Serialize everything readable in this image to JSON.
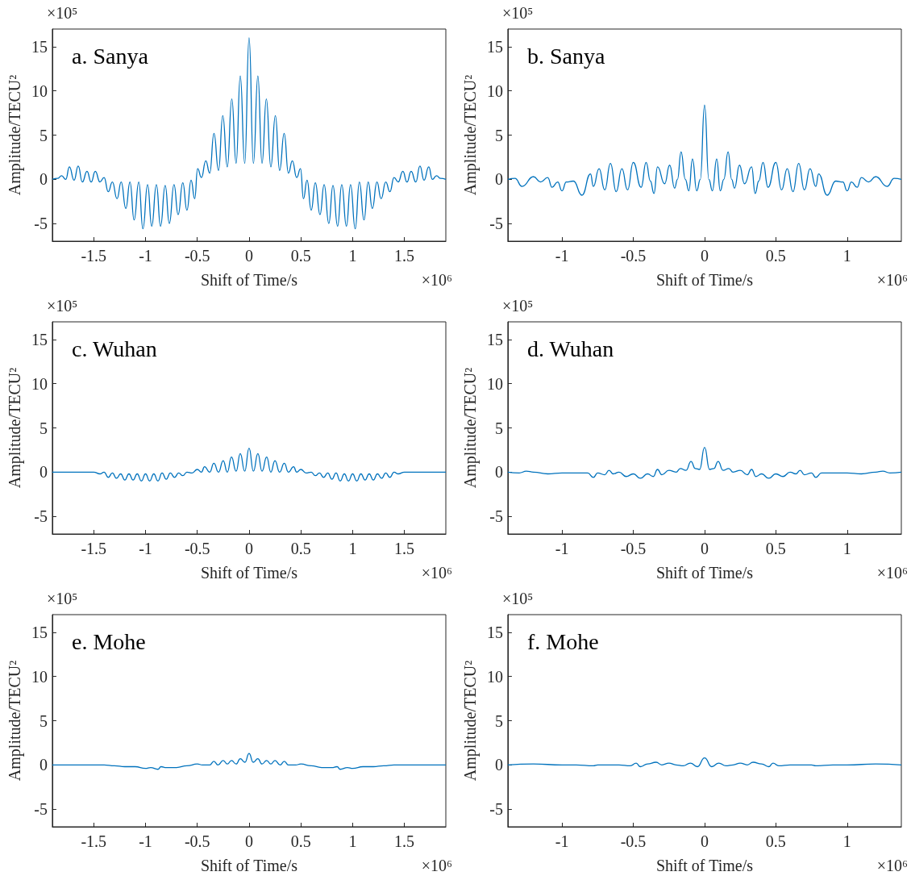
{
  "chart_data": [
    {
      "type": "line",
      "title": "a. Sanya",
      "xlabel": "Shift of Time/s",
      "ylabel": "Amplitude/TECU²",
      "annotations": [
        "×10⁵",
        "×10⁶"
      ],
      "xlim": [
        -1.9,
        1.9
      ],
      "xticks": [
        -1.5,
        -1,
        -0.5,
        0,
        0.5,
        1,
        1.5
      ],
      "ylim": [
        -7,
        17
      ],
      "yticks": [
        -5,
        0,
        5,
        10,
        15
      ],
      "marker": "none",
      "line_style": "solid",
      "x": [
        -1.9,
        -1.85,
        -1.81,
        -1.77,
        -1.735,
        -1.69,
        -1.65,
        -1.61,
        -1.565,
        -1.525,
        -1.485,
        -1.44,
        -1.4,
        -1.36,
        -1.32,
        -1.275,
        -1.235,
        -1.19,
        -1.15,
        -1.11,
        -1.065,
        -1.025,
        -0.98,
        -0.94,
        -0.895,
        -0.855,
        -0.81,
        -0.77,
        -0.725,
        -0.685,
        -0.64,
        -0.6,
        -0.56,
        -0.525,
        -0.497,
        -0.46,
        -0.418,
        -0.38,
        -0.339,
        -0.295,
        -0.254,
        -0.21,
        -0.167,
        -0.125,
        -0.085,
        -0.042,
        0,
        0.042,
        0.085,
        0.125,
        0.167,
        0.21,
        0.254,
        0.295,
        0.339,
        0.38,
        0.418,
        0.46,
        0.497,
        0.525,
        0.56,
        0.6,
        0.64,
        0.685,
        0.725,
        0.77,
        0.81,
        0.855,
        0.895,
        0.94,
        0.98,
        1.025,
        1.065,
        1.11,
        1.15,
        1.19,
        1.235,
        1.275,
        1.32,
        1.36,
        1.4,
        1.44,
        1.485,
        1.525,
        1.565,
        1.61,
        1.65,
        1.69,
        1.735,
        1.77,
        1.81,
        1.85,
        1.9
      ],
      "series": [
        {
          "color": "#0072bd",
          "values": [
            0,
            0.1,
            0.4,
            0,
            1.4,
            -0.1,
            1.5,
            -0.3,
            0.9,
            -0.3,
            0.9,
            -0.3,
            0.2,
            -1.4,
            -0.3,
            -2.2,
            -0.3,
            -3.3,
            -0.3,
            -4.6,
            -0.3,
            -5.6,
            -0.6,
            -5.3,
            -0.6,
            -5.3,
            -0.7,
            -5.0,
            -0.6,
            -4.0,
            -0.4,
            -3.5,
            -0.1,
            -2.2,
            1.2,
            0.2,
            2.1,
            0.7,
            5.2,
            1.0,
            7.2,
            1.4,
            9.1,
            1.8,
            11.7,
            1.8,
            16.0,
            1.8,
            11.7,
            1.8,
            9.1,
            1.4,
            7.2,
            1.0,
            5.2,
            0.7,
            2.1,
            0.2,
            1.2,
            -2.2,
            -0.1,
            -3.5,
            -0.4,
            -4.0,
            -0.6,
            -5.0,
            -0.7,
            -5.3,
            -0.6,
            -5.3,
            -0.6,
            -5.6,
            -0.3,
            -4.6,
            -0.3,
            -3.3,
            -0.3,
            -2.2,
            -0.3,
            -1.4,
            0.2,
            -0.3,
            0.9,
            -0.3,
            0.9,
            -0.3,
            1.5,
            -0.1,
            1.4,
            0,
            0.4,
            0.1,
            0
          ]
        }
      ]
    },
    {
      "type": "line",
      "title": "b. Sanya",
      "xlabel": "Shift of Time/s",
      "ylabel": "Amplitude/TECU²",
      "annotations": [
        "×10⁵",
        "×10⁶"
      ],
      "xlim": [
        -1.38,
        1.38
      ],
      "xticks": [
        -1,
        -0.5,
        0,
        0.5,
        1
      ],
      "ylim": [
        -7,
        17
      ],
      "yticks": [
        -5,
        0,
        5,
        10,
        15
      ],
      "marker": "none",
      "line_style": "solid",
      "x": [
        -1.38,
        -1.33,
        -1.28,
        -1.2,
        -1.15,
        -1.1,
        -1.07,
        -1.03,
        -1.0,
        -0.97,
        -0.92,
        -0.86,
        -0.8,
        -0.78,
        -0.74,
        -0.7,
        -0.66,
        -0.62,
        -0.58,
        -0.54,
        -0.5,
        -0.445,
        -0.41,
        -0.38,
        -0.355,
        -0.33,
        -0.28,
        -0.245,
        -0.21,
        -0.19,
        -0.165,
        -0.135,
        -0.11,
        -0.085,
        -0.055,
        -0.03,
        0,
        0.03,
        0.055,
        0.085,
        0.11,
        0.135,
        0.165,
        0.19,
        0.21,
        0.245,
        0.28,
        0.33,
        0.355,
        0.38,
        0.41,
        0.445,
        0.5,
        0.54,
        0.58,
        0.62,
        0.66,
        0.7,
        0.74,
        0.78,
        0.8,
        0.86,
        0.92,
        0.97,
        1.0,
        1.03,
        1.07,
        1.1,
        1.15,
        1.2,
        1.28,
        1.33,
        1.38
      ],
      "series": [
        {
          "color": "#0072bd",
          "values": [
            0,
            0.1,
            -0.8,
            0.3,
            -0.3,
            0.2,
            -0.9,
            -0.3,
            -1.3,
            -0.3,
            -0.2,
            -1.8,
            0.6,
            -0.8,
            1.2,
            -1.2,
            1.8,
            -1.4,
            1.2,
            -1.2,
            1.9,
            -0.9,
            1.9,
            -0.2,
            -1.6,
            1.4,
            -0.5,
            1.6,
            -1.0,
            0,
            3.1,
            0,
            -1.3,
            2.3,
            -1.3,
            0,
            8.4,
            0,
            -1.3,
            2.3,
            -1.3,
            0,
            3.1,
            0,
            -1.0,
            1.6,
            -0.5,
            1.4,
            -1.6,
            -0.2,
            1.9,
            -0.9,
            1.9,
            -1.2,
            1.2,
            -1.4,
            1.8,
            -1.2,
            1.2,
            -0.8,
            0.6,
            -1.8,
            -0.2,
            -0.3,
            -1.3,
            -0.3,
            -0.9,
            0.2,
            -0.3,
            0.3,
            -0.8,
            0.1,
            0
          ]
        }
      ]
    },
    {
      "type": "line",
      "title": "c. Wuhan",
      "xlabel": "Shift of Time/s",
      "ylabel": "Amplitude/TECU²",
      "annotations": [
        "×10⁵",
        "×10⁶"
      ],
      "xlim": [
        -1.9,
        1.9
      ],
      "xticks": [
        -1.5,
        -1,
        -0.5,
        0,
        0.5,
        1,
        1.5
      ],
      "ylim": [
        -7,
        17
      ],
      "yticks": [
        -5,
        0,
        5,
        10,
        15
      ],
      "marker": "none",
      "line_style": "solid",
      "x": [
        -1.9,
        -1.6,
        -1.5,
        -1.44,
        -1.4,
        -1.36,
        -1.32,
        -1.28,
        -1.24,
        -1.2,
        -1.16,
        -1.12,
        -1.08,
        -1.04,
        -1.0,
        -0.96,
        -0.92,
        -0.88,
        -0.84,
        -0.8,
        -0.76,
        -0.72,
        -0.68,
        -0.64,
        -0.6,
        -0.55,
        -0.5,
        -0.46,
        -0.43,
        -0.38,
        -0.34,
        -0.295,
        -0.25,
        -0.21,
        -0.17,
        -0.125,
        -0.085,
        -0.042,
        0,
        0.042,
        0.085,
        0.125,
        0.17,
        0.21,
        0.25,
        0.295,
        0.34,
        0.38,
        0.43,
        0.46,
        0.5,
        0.55,
        0.6,
        0.64,
        0.68,
        0.72,
        0.76,
        0.8,
        0.84,
        0.88,
        0.92,
        0.96,
        1.0,
        1.04,
        1.08,
        1.12,
        1.16,
        1.2,
        1.24,
        1.28,
        1.32,
        1.36,
        1.4,
        1.44,
        1.5,
        1.6,
        1.9
      ],
      "series": [
        {
          "color": "#0072bd",
          "values": [
            0,
            0,
            0,
            -0.2,
            0,
            -0.6,
            -0.1,
            -0.7,
            -0.2,
            -0.9,
            -0.2,
            -0.9,
            -0.2,
            -1.0,
            -0.2,
            -1.0,
            -0.2,
            -1.0,
            -0.1,
            -0.8,
            -0.1,
            -0.6,
            -0.1,
            -0.4,
            0,
            -0.1,
            0.3,
            0,
            0.6,
            0,
            1.0,
            0,
            1.3,
            0,
            1.7,
            0.1,
            2.1,
            0.1,
            2.7,
            0.1,
            2.1,
            0.1,
            1.7,
            0,
            1.3,
            0,
            1.0,
            0,
            0.6,
            0,
            0.3,
            -0.1,
            0,
            -0.4,
            -0.1,
            -0.6,
            -0.1,
            -0.8,
            -0.1,
            -1.0,
            -0.2,
            -1.0,
            -0.2,
            -1.0,
            -0.2,
            -0.9,
            -0.2,
            -0.9,
            -0.2,
            -0.7,
            -0.1,
            -0.6,
            0,
            -0.2,
            0,
            0,
            0
          ]
        }
      ]
    },
    {
      "type": "line",
      "title": "d. Wuhan",
      "xlabel": "Shift of Time/s",
      "ylabel": "Amplitude/TECU²",
      "annotations": [
        "×10⁵",
        "×10⁶"
      ],
      "xlim": [
        -1.38,
        1.38
      ],
      "xticks": [
        -1,
        -0.5,
        0,
        0.5,
        1
      ],
      "ylim": [
        -7,
        17
      ],
      "yticks": [
        -5,
        0,
        5,
        10,
        15
      ],
      "marker": "none",
      "line_style": "solid",
      "x": [
        -1.38,
        -1.3,
        -1.25,
        -1.2,
        -1.1,
        -1.0,
        -0.9,
        -0.82,
        -0.78,
        -0.75,
        -0.7,
        -0.67,
        -0.64,
        -0.6,
        -0.55,
        -0.5,
        -0.45,
        -0.4,
        -0.36,
        -0.33,
        -0.3,
        -0.25,
        -0.2,
        -0.17,
        -0.13,
        -0.095,
        -0.065,
        -0.035,
        0,
        0.035,
        0.065,
        0.095,
        0.13,
        0.17,
        0.2,
        0.25,
        0.3,
        0.33,
        0.36,
        0.4,
        0.45,
        0.5,
        0.55,
        0.6,
        0.64,
        0.67,
        0.7,
        0.75,
        0.78,
        0.82,
        0.9,
        1.0,
        1.1,
        1.2,
        1.25,
        1.3,
        1.38
      ],
      "series": [
        {
          "color": "#0072bd",
          "values": [
            0,
            -0.1,
            0.1,
            0,
            -0.2,
            -0.1,
            -0.1,
            -0.1,
            -0.6,
            -0.1,
            -0.3,
            0.2,
            -0.2,
            0,
            -0.5,
            -0.2,
            -0.7,
            -0.2,
            -0.5,
            0.3,
            -0.3,
            0.2,
            0,
            0.4,
            0.2,
            1.2,
            0.4,
            0.3,
            2.8,
            0.3,
            0.4,
            1.2,
            0.2,
            0.4,
            0,
            0.2,
            -0.3,
            0.3,
            -0.5,
            -0.2,
            -0.7,
            -0.2,
            -0.5,
            0,
            -0.2,
            0.2,
            -0.3,
            -0.1,
            -0.6,
            -0.1,
            -0.1,
            -0.1,
            -0.2,
            0,
            0.1,
            -0.1,
            0
          ]
        }
      ]
    },
    {
      "type": "line",
      "title": "e. Mohe",
      "xlabel": "Shift of Time/s",
      "ylabel": "Amplitude/TECU²",
      "annotations": [
        "×10⁵",
        "×10⁶"
      ],
      "xlim": [
        -1.9,
        1.9
      ],
      "xticks": [
        -1.5,
        -1,
        -0.5,
        0,
        0.5,
        1,
        1.5
      ],
      "ylim": [
        -7,
        17
      ],
      "yticks": [
        -5,
        0,
        5,
        10,
        15
      ],
      "marker": "none",
      "line_style": "solid",
      "x": [
        -1.9,
        -1.6,
        -1.4,
        -1.3,
        -1.2,
        -1.1,
        -1.0,
        -0.95,
        -0.88,
        -0.85,
        -0.8,
        -0.7,
        -0.6,
        -0.5,
        -0.45,
        -0.38,
        -0.34,
        -0.3,
        -0.25,
        -0.21,
        -0.17,
        -0.125,
        -0.085,
        -0.04,
        0,
        0.04,
        0.085,
        0.125,
        0.17,
        0.21,
        0.25,
        0.3,
        0.34,
        0.38,
        0.45,
        0.5,
        0.6,
        0.7,
        0.8,
        0.85,
        0.88,
        0.95,
        1.0,
        1.1,
        1.2,
        1.3,
        1.4,
        1.6,
        1.9
      ],
      "series": [
        {
          "color": "#0072bd",
          "values": [
            0,
            0,
            0,
            -0.1,
            -0.2,
            -0.2,
            -0.4,
            -0.3,
            -0.5,
            -0.2,
            -0.3,
            -0.3,
            -0.1,
            0.1,
            0,
            0,
            0.4,
            0,
            0.5,
            0.1,
            0.5,
            0.1,
            0.7,
            0.3,
            1.3,
            0.3,
            0.7,
            0.1,
            0.5,
            0.1,
            0.5,
            0,
            0.4,
            0,
            0,
            0.1,
            -0.1,
            -0.3,
            -0.3,
            -0.2,
            -0.5,
            -0.3,
            -0.4,
            -0.2,
            -0.2,
            -0.1,
            0,
            0,
            0
          ]
        }
      ]
    },
    {
      "type": "line",
      "title": "f. Mohe",
      "xlabel": "Shift of Time/s",
      "ylabel": "Amplitude/TECU²",
      "annotations": [
        "×10⁵",
        "×10⁶"
      ],
      "xlim": [
        -1.38,
        1.38
      ],
      "xticks": [
        -1,
        -0.5,
        0,
        0.5,
        1
      ],
      "ylim": [
        -7,
        17
      ],
      "yticks": [
        -5,
        0,
        5,
        10,
        15
      ],
      "marker": "none",
      "line_style": "solid",
      "x": [
        -1.38,
        -1.2,
        -1.0,
        -0.9,
        -0.78,
        -0.75,
        -0.6,
        -0.52,
        -0.48,
        -0.45,
        -0.4,
        -0.34,
        -0.3,
        -0.25,
        -0.2,
        -0.15,
        -0.1,
        -0.05,
        0,
        0.05,
        0.1,
        0.15,
        0.2,
        0.25,
        0.3,
        0.34,
        0.4,
        0.45,
        0.48,
        0.52,
        0.6,
        0.75,
        0.78,
        0.9,
        1.0,
        1.2,
        1.38
      ],
      "series": [
        {
          "color": "#0072bd",
          "values": [
            0,
            0.1,
            0,
            0,
            -0.1,
            0,
            0,
            -0.1,
            0.2,
            -0.2,
            0.1,
            0.3,
            0,
            0.2,
            0,
            -0.1,
            0.2,
            -0.2,
            0.8,
            -0.2,
            0.2,
            -0.1,
            0,
            0.2,
            0,
            0.3,
            0.1,
            -0.2,
            0.2,
            -0.1,
            0,
            0,
            -0.1,
            0,
            0,
            0.1,
            0
          ]
        }
      ]
    }
  ]
}
